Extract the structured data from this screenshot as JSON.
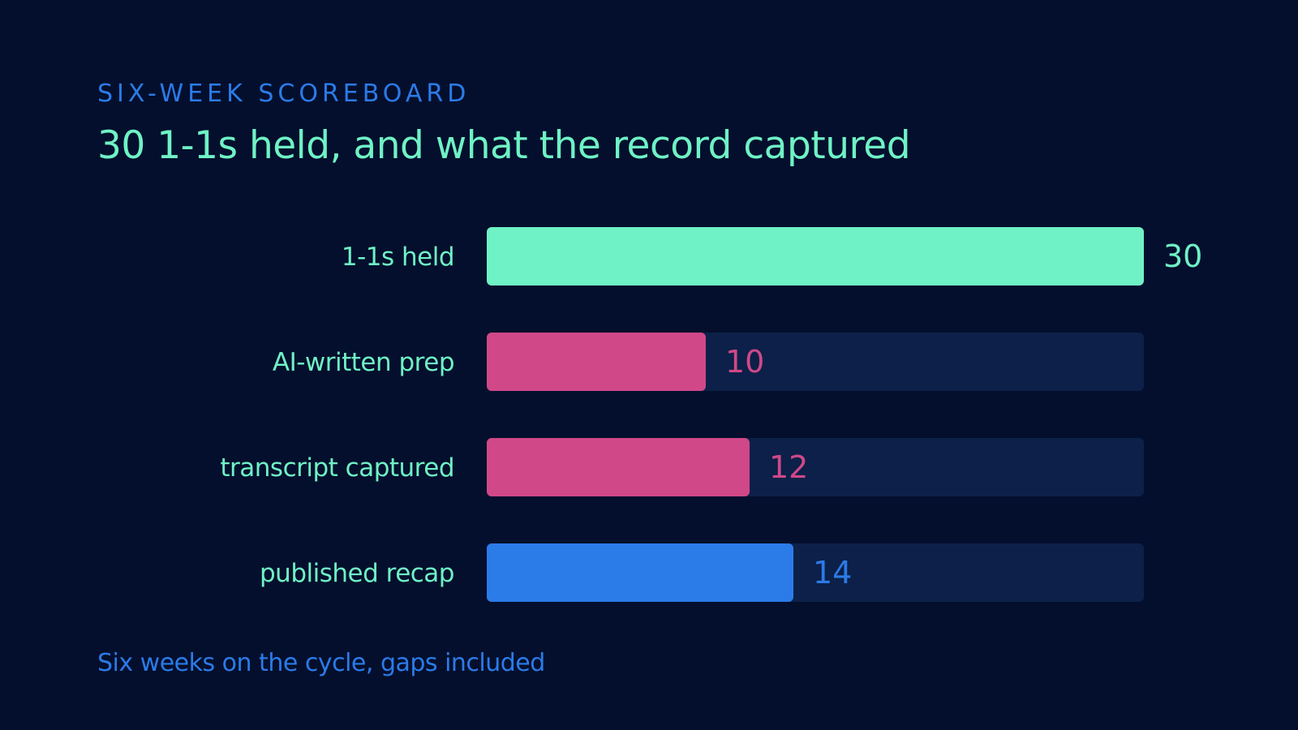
{
  "header": {
    "eyebrow": "SIX-WEEK SCOREBOARD",
    "title": "30 1-1s held, and what the record captured"
  },
  "footer": {
    "note": "Six weeks on the cycle, gaps included"
  },
  "colors": {
    "background": "#040f2d",
    "track": "#0c2049",
    "mint": "#6ff2c5",
    "pink": "#d04888",
    "blue": "#2b7be8"
  },
  "chart_data": {
    "type": "bar",
    "orientation": "horizontal",
    "categories": [
      "1-1s held",
      "AI-written prep",
      "transcript captured",
      "published recap"
    ],
    "values": [
      30,
      10,
      12,
      14
    ],
    "value_labels": [
      "30",
      "10",
      "12",
      "14"
    ],
    "bar_colors": [
      "#6ff2c5",
      "#d04888",
      "#d04888",
      "#2b7be8"
    ],
    "xlim": [
      0,
      30
    ],
    "grid": false,
    "legend": "none"
  }
}
